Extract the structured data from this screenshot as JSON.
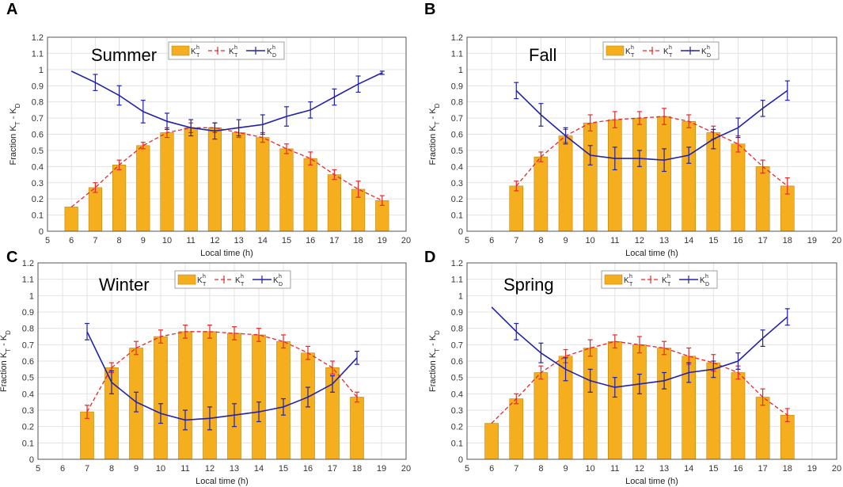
{
  "chart_data": [
    {
      "panel": "A",
      "type": "bar",
      "title": "Summer",
      "xlabel": "Local time (h)",
      "ylabel": "Fraction K_T - K_D",
      "xlim": [
        5,
        20
      ],
      "ylim": [
        0,
        1.2
      ],
      "xticks": [
        "5",
        "6",
        "7",
        "8",
        "9",
        "10",
        "11",
        "12",
        "13",
        "14",
        "15",
        "16",
        "17",
        "18",
        "19",
        "20"
      ],
      "yticks": [
        "0",
        "0.1",
        "0.2",
        "0.3",
        "0.4",
        "0.5",
        "0.6",
        "0.7",
        "0.8",
        "0.9",
        "1",
        "1.1",
        "1.2"
      ],
      "legend": [
        {
          "label": "K",
          "sup": "h",
          "sub": "T"
        },
        {
          "label": "K",
          "sup": "h",
          "sub": "T"
        },
        {
          "label": "K",
          "sup": "h",
          "sub": "D"
        }
      ],
      "legend_position": "top",
      "grid": true,
      "x": [
        6,
        7,
        8,
        9,
        10,
        11,
        12,
        13,
        14,
        15,
        16,
        17,
        18,
        19
      ],
      "series": [
        {
          "name": "K_T bar",
          "kind": "bar",
          "values": [
            0.15,
            0.27,
            0.41,
            0.53,
            0.61,
            0.64,
            0.64,
            0.61,
            0.58,
            0.51,
            0.45,
            0.35,
            0.26,
            0.19
          ]
        },
        {
          "name": "K_T line",
          "kind": "dashed-line",
          "values": [
            0.15,
            0.27,
            0.41,
            0.53,
            0.61,
            0.64,
            0.64,
            0.61,
            0.58,
            0.51,
            0.45,
            0.35,
            0.26,
            0.19
          ],
          "errors": [
            0,
            0.03,
            0.03,
            0.02,
            0.03,
            0.03,
            0.03,
            0.03,
            0.03,
            0.03,
            0.04,
            0.03,
            0.05,
            0.03
          ]
        },
        {
          "name": "K_D line",
          "kind": "line",
          "values": [
            0.99,
            0.92,
            0.84,
            0.74,
            0.68,
            0.64,
            0.62,
            0.64,
            0.66,
            0.71,
            0.75,
            0.83,
            0.91,
            0.98
          ],
          "errors": [
            0,
            0.05,
            0.06,
            0.07,
            0.05,
            0.05,
            0.05,
            0.05,
            0.06,
            0.06,
            0.05,
            0.05,
            0.05,
            0.01
          ]
        }
      ]
    },
    {
      "panel": "B",
      "type": "bar",
      "title": "Fall",
      "xlabel": "Local time (h)",
      "ylabel": "Fraction K_T - K_D",
      "xlim": [
        5,
        20
      ],
      "ylim": [
        0,
        1.2
      ],
      "xticks": [
        "5",
        "6",
        "7",
        "8",
        "9",
        "10",
        "11",
        "12",
        "13",
        "14",
        "15",
        "16",
        "17",
        "18",
        "19",
        "20"
      ],
      "yticks": [
        "0",
        "0.1",
        "0.2",
        "0.3",
        "0.4",
        "0.5",
        "0.6",
        "0.7",
        "0.8",
        "0.9",
        "1",
        "1.1",
        "1.2"
      ],
      "legend": [
        {
          "label": "K",
          "sup": "h",
          "sub": "T"
        },
        {
          "label": "K",
          "sup": "h",
          "sub": "T"
        },
        {
          "label": "K",
          "sup": "h",
          "sub": "D"
        }
      ],
      "legend_position": "top",
      "grid": true,
      "x": [
        7,
        8,
        9,
        10,
        11,
        12,
        13,
        14,
        15,
        16,
        17,
        18
      ],
      "series": [
        {
          "name": "K_T bar",
          "kind": "bar",
          "values": [
            0.28,
            0.46,
            0.59,
            0.67,
            0.69,
            0.7,
            0.71,
            0.68,
            0.61,
            0.54,
            0.4,
            0.28
          ]
        },
        {
          "name": "K_T line",
          "kind": "dashed-line",
          "values": [
            0.28,
            0.46,
            0.59,
            0.67,
            0.69,
            0.7,
            0.71,
            0.68,
            0.61,
            0.54,
            0.4,
            0.28
          ],
          "errors": [
            0.03,
            0.03,
            0.04,
            0.05,
            0.05,
            0.04,
            0.05,
            0.04,
            0.04,
            0.05,
            0.04,
            0.05
          ]
        },
        {
          "name": "K_D line",
          "kind": "line",
          "values": [
            0.87,
            0.72,
            0.59,
            0.47,
            0.45,
            0.45,
            0.44,
            0.47,
            0.57,
            0.64,
            0.76,
            0.87
          ],
          "errors": [
            0.05,
            0.07,
            0.05,
            0.06,
            0.07,
            0.05,
            0.07,
            0.05,
            0.06,
            0.06,
            0.05,
            0.06
          ]
        }
      ]
    },
    {
      "panel": "C",
      "type": "bar",
      "title": "Winter",
      "xlabel": "Local time (h)",
      "ylabel": "Fraction K_T - K_D",
      "xlim": [
        5,
        20
      ],
      "ylim": [
        0,
        1.2
      ],
      "xticks": [
        "5",
        "6",
        "7",
        "8",
        "9",
        "10",
        "11",
        "12",
        "13",
        "14",
        "15",
        "16",
        "17",
        "18",
        "19",
        "20"
      ],
      "yticks": [
        "0",
        "0.1",
        "0.2",
        "0.3",
        "0.4",
        "0.5",
        "0.6",
        "0.7",
        "0.8",
        "0.9",
        "1",
        "1.1",
        "1.2"
      ],
      "legend": [
        {
          "label": "K",
          "sup": "h",
          "sub": "T"
        },
        {
          "label": "K",
          "sup": "h",
          "sub": "T"
        },
        {
          "label": "K",
          "sup": "h",
          "sub": "D"
        }
      ],
      "legend_position": "top",
      "grid": true,
      "x": [
        7,
        8,
        9,
        10,
        11,
        12,
        13,
        14,
        15,
        16,
        17,
        18
      ],
      "series": [
        {
          "name": "K_T bar",
          "kind": "bar",
          "values": [
            0.29,
            0.56,
            0.68,
            0.75,
            0.78,
            0.78,
            0.77,
            0.76,
            0.72,
            0.65,
            0.56,
            0.38
          ]
        },
        {
          "name": "K_T line",
          "kind": "dashed-line",
          "values": [
            0.29,
            0.56,
            0.68,
            0.75,
            0.78,
            0.78,
            0.77,
            0.76,
            0.72,
            0.65,
            0.56,
            0.38
          ],
          "errors": [
            0.04,
            0.03,
            0.04,
            0.04,
            0.04,
            0.04,
            0.04,
            0.04,
            0.04,
            0.04,
            0.04,
            0.03
          ]
        },
        {
          "name": "K_D line",
          "kind": "line",
          "values": [
            0.78,
            0.47,
            0.35,
            0.28,
            0.24,
            0.25,
            0.27,
            0.29,
            0.32,
            0.38,
            0.46,
            0.62
          ],
          "errors": [
            0.05,
            0.07,
            0.06,
            0.06,
            0.06,
            0.07,
            0.07,
            0.06,
            0.05,
            0.06,
            0.05,
            0.04
          ]
        }
      ]
    },
    {
      "panel": "D",
      "type": "bar",
      "title": "Spring",
      "xlabel": "Local time (h)",
      "ylabel": "Fraction K_T - K_D",
      "xlim": [
        5,
        20
      ],
      "ylim": [
        0,
        1.2
      ],
      "xticks": [
        "5",
        "6",
        "7",
        "8",
        "9",
        "10",
        "11",
        "12",
        "13",
        "14",
        "15",
        "16",
        "17",
        "18",
        "19",
        "20"
      ],
      "yticks": [
        "0",
        "0.1",
        "0.2",
        "0.3",
        "0.4",
        "0.5",
        "0.6",
        "0.7",
        "0.8",
        "0.9",
        "1",
        "1.1",
        "1.2"
      ],
      "legend": [
        {
          "label": "K",
          "sup": "h",
          "sub": "T"
        },
        {
          "label": "K",
          "sup": "h",
          "sub": "T"
        },
        {
          "label": "K",
          "sup": "h",
          "sub": "D"
        }
      ],
      "legend_position": "top",
      "grid": true,
      "x": [
        6,
        7,
        8,
        9,
        10,
        11,
        12,
        13,
        14,
        15,
        16,
        17,
        18
      ],
      "series": [
        {
          "name": "K_T bar",
          "kind": "bar",
          "values": [
            0.22,
            0.37,
            0.53,
            0.63,
            0.68,
            0.72,
            0.7,
            0.68,
            0.63,
            0.59,
            0.53,
            0.38,
            0.27
          ]
        },
        {
          "name": "K_T line",
          "kind": "dashed-line",
          "values": [
            0.22,
            0.37,
            0.53,
            0.63,
            0.68,
            0.72,
            0.7,
            0.68,
            0.63,
            0.59,
            0.53,
            0.38,
            0.27
          ],
          "errors": [
            0,
            0.03,
            0.04,
            0.04,
            0.05,
            0.04,
            0.05,
            0.04,
            0.05,
            0.05,
            0.04,
            0.05,
            0.04
          ]
        },
        {
          "name": "K_D line",
          "kind": "line",
          "values": [
            0.93,
            0.78,
            0.65,
            0.55,
            0.48,
            0.44,
            0.46,
            0.48,
            0.53,
            0.55,
            0.6,
            0.74,
            0.87
          ],
          "errors": [
            0,
            0.05,
            0.06,
            0.07,
            0.07,
            0.06,
            0.06,
            0.05,
            0.06,
            0.05,
            0.05,
            0.05,
            0.05
          ]
        }
      ]
    }
  ]
}
